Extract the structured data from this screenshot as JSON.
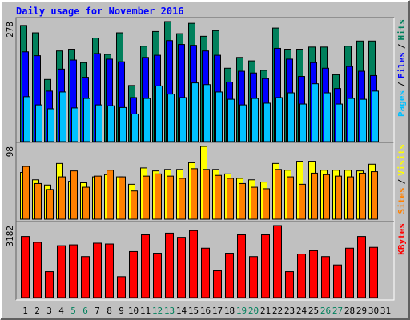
{
  "chart_data": {
    "type": "bar",
    "title": "Daily usage for November 2016",
    "categories": [
      "1",
      "2",
      "3",
      "4",
      "5",
      "6",
      "7",
      "8",
      "9",
      "10",
      "11",
      "12",
      "13",
      "14",
      "15",
      "16",
      "17",
      "18",
      "19",
      "20",
      "21",
      "22",
      "23",
      "24",
      "25",
      "26",
      "27",
      "28",
      "29",
      "30",
      "31"
    ],
    "category_label_colors": [
      "#000000",
      "#000000",
      "#000000",
      "#000000",
      "#00805c",
      "#00805c",
      "#000000",
      "#000000",
      "#000000",
      "#000000",
      "#000000",
      "#00805c",
      "#00805c",
      "#000000",
      "#000000",
      "#000000",
      "#000000",
      "#000000",
      "#00805c",
      "#00805c",
      "#000000",
      "#000000",
      "#000000",
      "#000000",
      "#000000",
      "#00805c",
      "#00805c",
      "#000000",
      "#000000",
      "#000000",
      "#000000"
    ],
    "legend_separator": "/",
    "grid": false,
    "panels": [
      {
        "ylim": [
          0,
          278
        ],
        "yticks": [
          278
        ],
        "series": [
          {
            "name": "Hits",
            "color": "#00805c",
            "values": [
              269,
              252,
              144,
              210,
              214,
              183,
              240,
              202,
              252,
              130,
              221,
              255,
              278,
              250,
              274,
              244,
              257,
              170,
              195,
              187,
              165,
              263,
              214,
              214,
              219,
              219,
              155,
              221,
              233,
              233,
              null
            ]
          },
          {
            "name": "Files",
            "color": "#0000ff",
            "values": [
              208,
              199,
              117,
              168,
              189,
              149,
              204,
              191,
              185,
              102,
              195,
              200,
              234,
              225,
              223,
              210,
              200,
              138,
              163,
              159,
              146,
              216,
              191,
              151,
              183,
              170,
              123,
              174,
              163,
              153,
              null
            ]
          },
          {
            "name": "Pages",
            "color": "#00c0ff",
            "values": [
              104,
              85,
              76,
              115,
              78,
              100,
              85,
              83,
              79,
              64,
              100,
              129,
              110,
              102,
              136,
              132,
              115,
              98,
              85,
              100,
              89,
              102,
              113,
              87,
              134,
              113,
              87,
              100,
              98,
              117,
              null
            ]
          }
        ]
      },
      {
        "ylim": [
          0,
          98
        ],
        "yticks": [
          98
        ],
        "series": [
          {
            "name": "Visits",
            "color": "#ffff00",
            "values": [
              63,
              53,
              46,
              75,
              51,
              49,
              57,
              60,
              57,
              47,
              69,
              65,
              67,
              67,
              76,
              98,
              67,
              61,
              55,
              53,
              50,
              75,
              66,
              78,
              78,
              66,
              66,
              66,
              65,
              74,
              null
            ]
          },
          {
            "name": "Sites",
            "color": "#ff8000",
            "values": [
              71,
              48,
              40,
              57,
              65,
              43,
              58,
              66,
              57,
              38,
              58,
              61,
              58,
              55,
              68,
              67,
              59,
              55,
              48,
              43,
              41,
              67,
              57,
              47,
              62,
              60,
              58,
              57,
              62,
              64,
              null
            ]
          }
        ]
      },
      {
        "ylim": [
          0,
          3182
        ],
        "yticks": [
          3182
        ],
        "series": [
          {
            "name": "KBytes",
            "color": "#ff0000",
            "values": [
              2701,
              2442,
              1147,
              2294,
              2331,
              1813,
              2405,
              2368,
              925,
              2035,
              2775,
              1961,
              2849,
              2664,
              2960,
              2183,
              1184,
              1961,
              2775,
              1813,
              2775,
              3182,
              1147,
              1924,
              2072,
              1813,
              1443,
              2183,
              2701,
              2220,
              null
            ]
          }
        ]
      }
    ]
  }
}
